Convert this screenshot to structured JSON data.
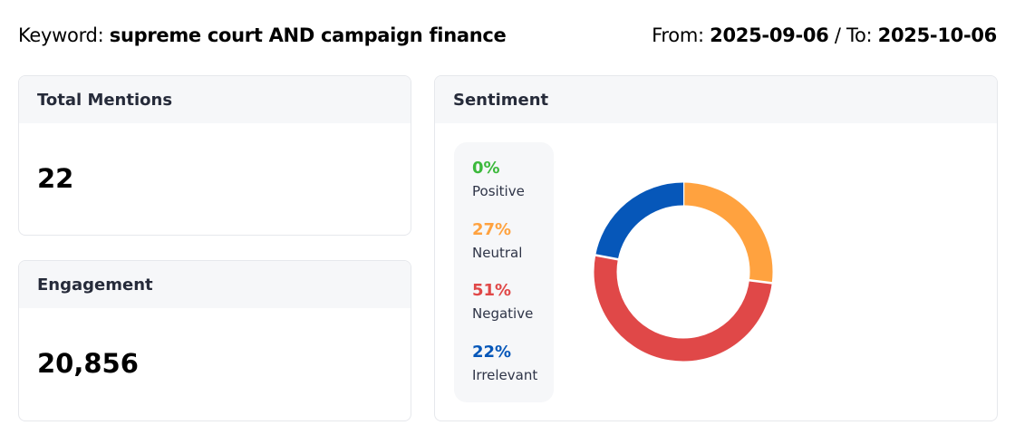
{
  "header": {
    "keyword_label": "Keyword: ",
    "keyword": "supreme court AND campaign finance",
    "from_label": "From: ",
    "from": "2025-09-06",
    "to_label": " / To: ",
    "to": "2025-10-06"
  },
  "total_mentions": {
    "title": "Total Mentions",
    "value": "22"
  },
  "engagement": {
    "title": "Engagement",
    "value": "20,856"
  },
  "sentiment": {
    "title": "Sentiment",
    "legend": [
      {
        "pct": "0%",
        "label": "Positive",
        "color": "#3cb93c"
      },
      {
        "pct": "27%",
        "label": "Neutral",
        "color": "#ffa23f"
      },
      {
        "pct": "51%",
        "label": "Negative",
        "color": "#e04848"
      },
      {
        "pct": "22%",
        "label": "Irrelevant",
        "color": "#0657b9"
      }
    ]
  },
  "chart_data": {
    "type": "pie",
    "variant": "donut",
    "categories": [
      "Positive",
      "Neutral",
      "Negative",
      "Irrelevant"
    ],
    "values": [
      0,
      27,
      51,
      22
    ],
    "colors": [
      "#3cb93c",
      "#ffa23f",
      "#e04848",
      "#0657b9"
    ],
    "start": "top",
    "direction": "clockwise"
  }
}
